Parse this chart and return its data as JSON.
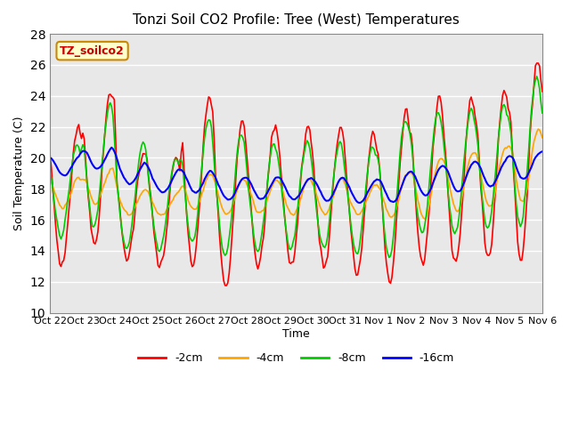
{
  "title": "Tonzi Soil CO2 Profile: Tree (West) Temperatures",
  "xlabel": "Time",
  "ylabel": "Soil Temperature (C)",
  "ylim": [
    10,
    28
  ],
  "yticks": [
    10,
    12,
    14,
    16,
    18,
    20,
    22,
    24,
    26,
    28
  ],
  "background_color": "#ffffff",
  "plot_bg_color": "#e8e8e8",
  "grid_color": "#ffffff",
  "line_colors": {
    "-2cm": "#ff0000",
    "-4cm": "#ffa500",
    "-8cm": "#00cc00",
    "-16cm": "#0000ff"
  },
  "legend_box_color": "#ffffcc",
  "legend_box_edge": "#cc8800",
  "watermark_text": "TZ_soilco2",
  "xtick_labels": [
    "Oct 22",
    "Oct 23",
    "Oct 24",
    "Oct 25",
    "Oct 26",
    "Oct 27",
    "Oct 28",
    "Oct 29",
    "Oct 30",
    "Oct 31",
    "Nov 1",
    "Nov 2",
    "Nov 3",
    "Nov 4",
    "Nov 5",
    "Nov 6"
  ]
}
